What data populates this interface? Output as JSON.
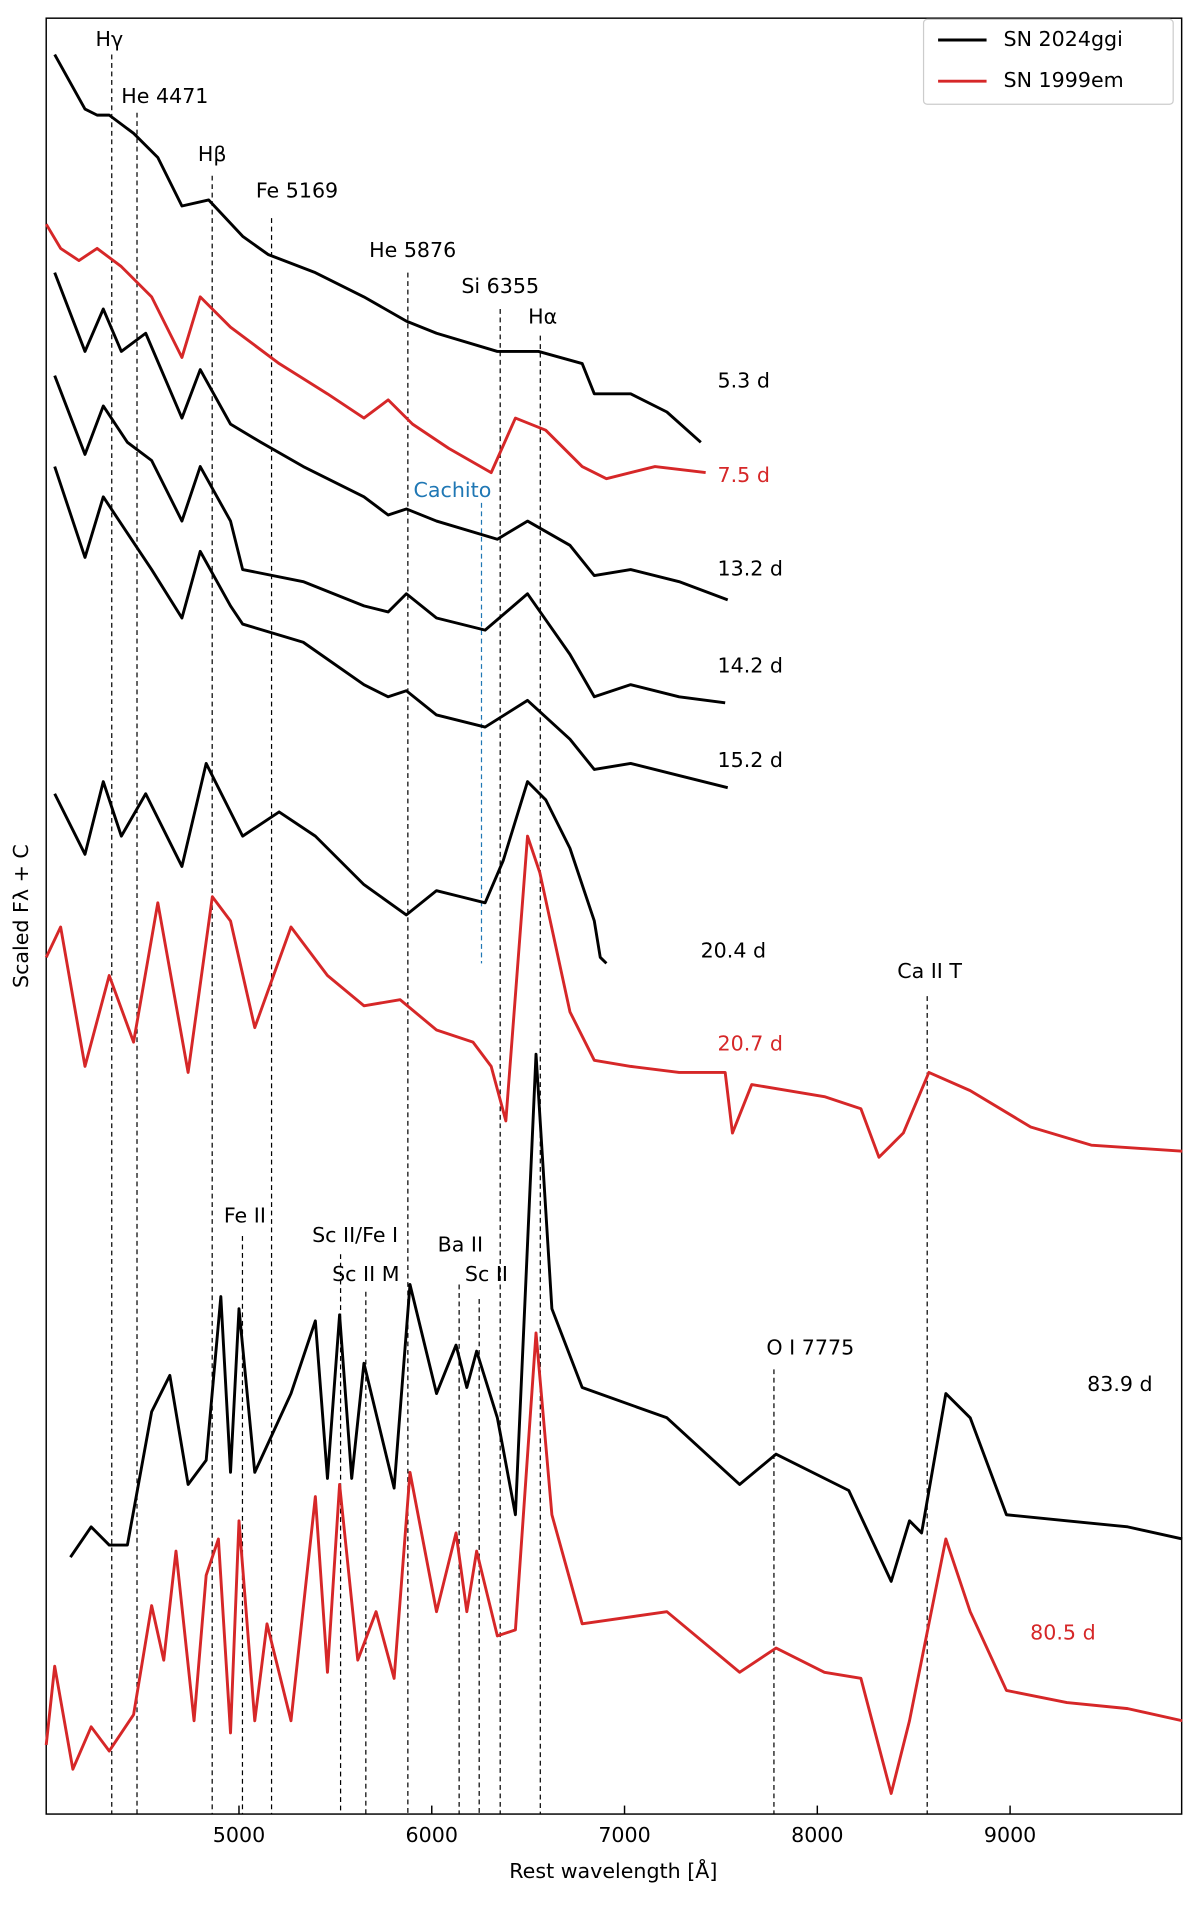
{
  "chart_data": {
    "type": "line",
    "xlabel": "Rest wavelength [Å]",
    "ylabel": "Scaled Fλ + C",
    "xlim": [
      4000,
      9890
    ],
    "xticks": [
      5000,
      6000,
      7000,
      8000,
      9000
    ],
    "ylim": [
      0,
      148.2
    ],
    "legend": {
      "position": "upper right",
      "entries": [
        {
          "name": "SN 2024ggi",
          "color": "#000000"
        },
        {
          "name": "SN 1999em",
          "color": "#d62728"
        }
      ]
    },
    "series": [
      {
        "label": "5.3 d",
        "color": "#000000",
        "x": [
          4044,
          4201,
          4264,
          4327,
          4453,
          4579,
          4704,
          4843,
          5019,
          5151,
          5396,
          5648,
          5868,
          6025,
          6340,
          6554,
          6780,
          6843,
          7032,
          7220,
          7396
        ],
        "values": [
          145.2,
          140.7,
          140.2,
          140.2,
          138.7,
          136.7,
          132.7,
          133.2,
          130.2,
          128.7,
          127.2,
          125.2,
          123.2,
          122.2,
          120.7,
          120.7,
          119.7,
          117.2,
          117.2,
          115.7,
          113.2
        ]
      },
      {
        "label": "7.5 d",
        "color": "#d62728",
        "x": [
          4000,
          4075,
          4170,
          4264,
          4390,
          4547,
          4704,
          4799,
          4956,
          5208,
          5459,
          5648,
          5774,
          5900,
          6088,
          6308,
          6434,
          6591,
          6780,
          6906,
          7158,
          7421
        ],
        "values": [
          131.2,
          129.2,
          128.2,
          129.2,
          127.7,
          125.2,
          120.2,
          125.2,
          122.7,
          119.7,
          117.2,
          115.2,
          116.7,
          114.7,
          112.7,
          110.7,
          115.2,
          114.2,
          111.2,
          110.2,
          111.2,
          110.7
        ]
      },
      {
        "label": "13.2 d",
        "color": "#000000",
        "x": [
          4044,
          4201,
          4296,
          4390,
          4516,
          4704,
          4799,
          4956,
          5113,
          5333,
          5648,
          5774,
          5868,
          6025,
          6340,
          6497,
          6717,
          6843,
          7032,
          7283,
          7535
        ],
        "values": [
          127.2,
          120.7,
          124.2,
          120.7,
          122.2,
          115.2,
          119.2,
          114.7,
          113.2,
          111.2,
          108.7,
          107.2,
          107.7,
          106.7,
          105.2,
          106.7,
          104.7,
          102.2,
          102.7,
          101.7,
          100.2
        ]
      },
      {
        "label": "14.2 d",
        "color": "#000000",
        "x": [
          4044,
          4201,
          4296,
          4421,
          4547,
          4704,
          4799,
          4956,
          5019,
          5333,
          5648,
          5774,
          5868,
          6025,
          6277,
          6497,
          6717,
          6843,
          7032,
          7283,
          7522
        ],
        "values": [
          118.7,
          112.2,
          116.2,
          113.2,
          111.7,
          106.7,
          111.2,
          106.7,
          102.7,
          101.7,
          99.7,
          99.2,
          100.7,
          98.7,
          97.7,
          100.7,
          95.7,
          92.2,
          93.2,
          92.2,
          91.7
        ]
      },
      {
        "label": "15.2 d",
        "color": "#000000",
        "x": [
          4044,
          4201,
          4296,
          4421,
          4547,
          4704,
          4799,
          4956,
          5019,
          5333,
          5648,
          5774,
          5868,
          6025,
          6277,
          6497,
          6717,
          6843,
          7032,
          7283,
          7535
        ],
        "values": [
          111.2,
          103.7,
          108.7,
          105.7,
          102.7,
          98.7,
          104.2,
          99.7,
          98.2,
          96.7,
          93.2,
          92.2,
          92.7,
          90.7,
          89.7,
          91.9,
          88.7,
          86.2,
          86.7,
          85.7,
          84.7
        ]
      },
      {
        "label": "20.4 d",
        "color": "#000000",
        "x": [
          4044,
          4201,
          4296,
          4390,
          4516,
          4704,
          4830,
          5019,
          5208,
          5396,
          5648,
          5868,
          6025,
          6151,
          6277,
          6371,
          6497,
          6591,
          6717,
          6843,
          6874,
          6906
        ],
        "values": [
          84.2,
          79.2,
          85.2,
          80.7,
          84.2,
          78.2,
          86.7,
          80.7,
          82.7,
          80.7,
          76.7,
          74.2,
          76.2,
          75.7,
          75.2,
          78.7,
          85.2,
          83.7,
          79.7,
          73.7,
          70.7,
          70.2
        ]
      },
      {
        "label": "20.7 d",
        "color": "#d62728",
        "x": [
          4000,
          4075,
          4201,
          4327,
          4453,
          4579,
          4736,
          4862,
          4956,
          5082,
          5270,
          5459,
          5648,
          5836,
          6025,
          6214,
          6308,
          6384,
          6497,
          6560,
          6717,
          6843,
          7032,
          7283,
          7522,
          7560,
          7660,
          8037,
          8226,
          8320,
          8446,
          8579,
          8793,
          9107,
          9421,
          9893
        ],
        "values": [
          70.7,
          73.2,
          61.7,
          69.2,
          63.7,
          75.2,
          61.2,
          75.7,
          73.7,
          64.9,
          73.2,
          69.2,
          66.7,
          67.2,
          64.7,
          63.7,
          61.7,
          57.2,
          80.7,
          77.7,
          66.2,
          62.2,
          61.7,
          61.2,
          61.2,
          56.2,
          60.2,
          59.2,
          58.2,
          54.2,
          56.2,
          61.2,
          59.7,
          56.7,
          55.2,
          54.7
        ]
      },
      {
        "label": "83.9 d",
        "color": "#000000",
        "x": [
          4126,
          4233,
          4327,
          4421,
          4547,
          4641,
          4736,
          4830,
          4906,
          4956,
          5000,
          5082,
          5270,
          5396,
          5459,
          5522,
          5585,
          5648,
          5805,
          5887,
          6025,
          6126,
          6182,
          6233,
          6340,
          6434,
          6541,
          6623,
          6780,
          7220,
          7597,
          7786,
          8163,
          8383,
          8478,
          8541,
          8667,
          8793,
          8981,
          9295,
          9610,
          9893
        ],
        "values": [
          21.2,
          23.7,
          22.2,
          22.2,
          33.2,
          36.2,
          27.2,
          29.2,
          42.7,
          28.2,
          41.7,
          28.2,
          34.7,
          40.7,
          27.7,
          41.2,
          27.7,
          37.2,
          26.9,
          43.7,
          34.7,
          38.7,
          35.2,
          38.2,
          32.7,
          24.7,
          62.7,
          41.7,
          35.2,
          32.7,
          27.2,
          29.7,
          26.7,
          19.2,
          24.2,
          23.2,
          34.7,
          32.7,
          24.7,
          24.2,
          23.7,
          22.7
        ]
      },
      {
        "label": "80.5 d",
        "color": "#d62728",
        "x": [
          4000,
          4044,
          4138,
          4233,
          4327,
          4453,
          4547,
          4610,
          4673,
          4767,
          4830,
          4893,
          4956,
          5000,
          5082,
          5145,
          5270,
          5396,
          5459,
          5522,
          5616,
          5711,
          5805,
          5887,
          6025,
          6126,
          6182,
          6233,
          6340,
          6434,
          6541,
          6623,
          6780,
          7220,
          7597,
          7786,
          8037,
          8226,
          8383,
          8478,
          8667,
          8793,
          8981,
          9295,
          9610,
          9893
        ],
        "values": [
          5.7,
          12.2,
          3.7,
          7.2,
          5.2,
          8.2,
          17.2,
          12.7,
          21.7,
          7.7,
          19.7,
          22.7,
          6.7,
          24.2,
          7.7,
          15.7,
          7.7,
          26.2,
          11.7,
          27.2,
          12.7,
          16.7,
          11.2,
          28.2,
          16.7,
          23.2,
          16.7,
          21.7,
          14.7,
          15.2,
          39.7,
          24.7,
          15.7,
          16.7,
          11.7,
          13.7,
          11.7,
          11.2,
          1.7,
          7.7,
          22.7,
          16.7,
          10.2,
          9.2,
          8.7,
          7.7
        ]
      }
    ],
    "annotations": [
      {
        "text": "Hγ",
        "x": 4340,
        "color": "#000000"
      },
      {
        "text": "He 4471",
        "x": 4471,
        "color": "#000000"
      },
      {
        "text": "Hβ",
        "x": 4861,
        "color": "#000000"
      },
      {
        "text": "Fe 5169",
        "x": 5169,
        "color": "#000000"
      },
      {
        "text": "He 5876",
        "x": 5876,
        "color": "#000000"
      },
      {
        "text": "Si 6355",
        "x": 6355,
        "color": "#000000"
      },
      {
        "text": "Hα",
        "x": 6563,
        "color": "#000000"
      },
      {
        "text": "Cachito",
        "x": 6258,
        "color": "#1f77b4"
      },
      {
        "text": "Ca II T",
        "x": 8570,
        "color": "#000000"
      },
      {
        "text": "Fe II",
        "x": 5018,
        "color": "#000000"
      },
      {
        "text": "Sc II/Fe I",
        "x": 5527,
        "color": "#000000"
      },
      {
        "text": "Sc II M",
        "x": 5658,
        "color": "#000000"
      },
      {
        "text": "Ba II",
        "x": 6142,
        "color": "#000000"
      },
      {
        "text": "Sc II",
        "x": 6246,
        "color": "#000000"
      },
      {
        "text": "O I 7775",
        "x": 7775,
        "color": "#000000"
      }
    ]
  }
}
